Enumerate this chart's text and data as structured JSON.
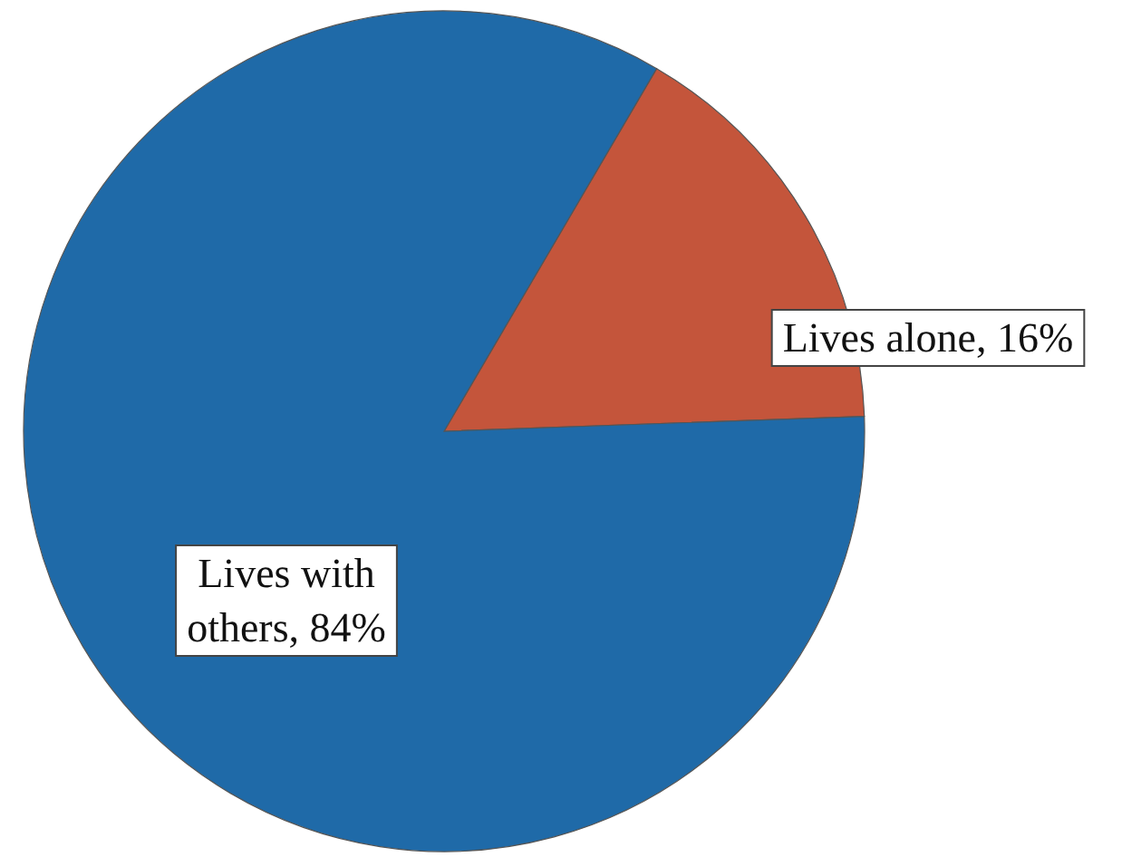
{
  "chart_data": {
    "type": "pie",
    "categories": [
      "Lives alone",
      "Lives with others"
    ],
    "values": [
      16,
      84
    ],
    "colors": [
      "#c4553b",
      "#1f6aa8"
    ],
    "value_labels": [
      "16%",
      "84%"
    ]
  }
}
